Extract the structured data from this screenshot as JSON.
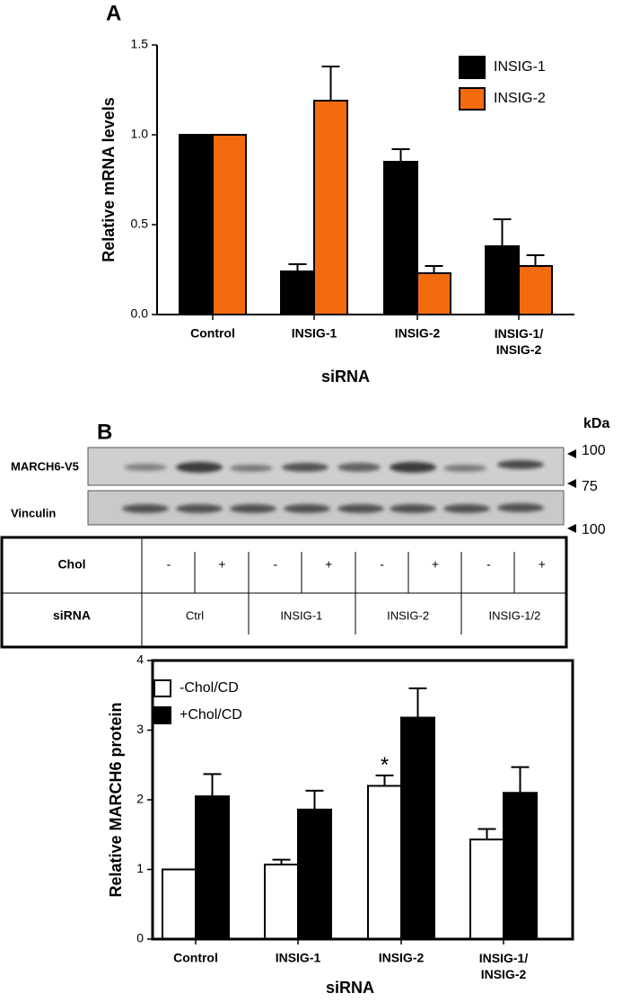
{
  "panels": {
    "a": "A",
    "b": "B"
  },
  "blot": {
    "rows": [
      "MARCH6-V5",
      "Vinculin"
    ],
    "unit": "kDa",
    "markers": [
      "100",
      "75",
      "100"
    ]
  },
  "table": {
    "rows": [
      {
        "label": "Chol",
        "cells": [
          "-",
          "+",
          "-",
          "+",
          "-",
          "+",
          "-",
          "+"
        ]
      },
      {
        "label": "siRNA",
        "cells": [
          "Ctrl",
          "INSIG-1",
          "INSIG-2",
          "INSIG-1/2"
        ]
      }
    ]
  },
  "chart_data": [
    {
      "type": "bar",
      "ylabel": "Relative mRNA levels",
      "xlabel": "siRNA",
      "categories": [
        "Control",
        "INSIG-1",
        "INSIG-2",
        "INSIG-1/\nINSIG-2"
      ],
      "series": [
        {
          "name": "INSIG-1",
          "color": "#000000",
          "values": [
            1.0,
            0.24,
            0.85,
            0.38
          ],
          "errors": [
            0,
            0.04,
            0.07,
            0.15
          ]
        },
        {
          "name": "INSIG-2",
          "color": "#f26b0f",
          "values": [
            1.0,
            1.19,
            0.23,
            0.27
          ],
          "errors": [
            0,
            0.19,
            0.04,
            0.06
          ]
        }
      ],
      "ylim": [
        0,
        1.5
      ],
      "yticks": [
        {
          "value": 0,
          "label": "0.0"
        },
        {
          "value": 0.5,
          "label": "0.5"
        },
        {
          "value": 1,
          "label": "1.0"
        },
        {
          "value": 1.5,
          "label": "1.5"
        }
      ],
      "legend": "upper right"
    },
    {
      "type": "bar",
      "ylabel": "Relative  MARCH6 protein",
      "xlabel": "siRNA",
      "categories": [
        "Control",
        "INSIG-1",
        "INSIG-2",
        "INSIG-1/\nINSIG-2"
      ],
      "series": [
        {
          "name": "-Chol/CD",
          "color": "#ffffff",
          "values": [
            1.0,
            1.07,
            2.2,
            1.43
          ],
          "errors": [
            0,
            0.07,
            0.15,
            0.15
          ]
        },
        {
          "name": "+Chol/CD",
          "color": "#000000",
          "values": [
            2.05,
            1.86,
            3.18,
            2.1
          ],
          "errors": [
            0.32,
            0.27,
            0.42,
            0.37
          ]
        }
      ],
      "ylim": [
        0,
        4
      ],
      "yticks": [
        0,
        1,
        2,
        3,
        4
      ],
      "legend": "upper left",
      "annotations": [
        {
          "text": "*"
        }
      ]
    }
  ]
}
